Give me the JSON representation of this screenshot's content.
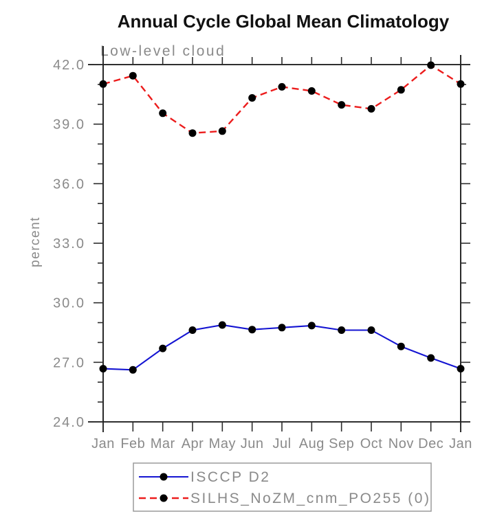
{
  "title": "Annual Cycle Global Mean Climatology",
  "subtitle": "Low-level cloud",
  "y_axis_label": "percent",
  "chart_data": {
    "type": "line",
    "title": "Annual Cycle Global Mean Climatology",
    "subtitle": "Low-level cloud",
    "ylabel": "percent",
    "xlabel": "",
    "categories": [
      "Jan",
      "Feb",
      "Mar",
      "Apr",
      "May",
      "Jun",
      "Jul",
      "Aug",
      "Sep",
      "Oct",
      "Nov",
      "Dec",
      "Jan"
    ],
    "ylim": [
      24.0,
      42.0
    ],
    "ytick_values": [
      24.0,
      27.0,
      30.0,
      33.0,
      36.0,
      39.0,
      42.0
    ],
    "ytick_labels": [
      "24.0",
      "27.0",
      "30.0",
      "33.0",
      "36.0",
      "39.0",
      "42.0"
    ],
    "yminor_interval": 1.0,
    "grid": false,
    "legend_position": "bottom-outside",
    "series": [
      {
        "name": "ISCCP D2",
        "line_color": "#1414d2",
        "line_style": "solid",
        "marker": "filled-circle",
        "marker_color": "#000000",
        "values": [
          26.68,
          26.62,
          27.7,
          28.62,
          28.88,
          28.65,
          28.75,
          28.85,
          28.62,
          28.62,
          27.8,
          27.22,
          26.68
        ]
      },
      {
        "name": "SILHS_NoZM_cnm_PO255 (0)",
        "line_color": "#ec1c1c",
        "line_style": "dashed",
        "marker": "filled-circle",
        "marker_color": "#000000",
        "values": [
          41.02,
          41.44,
          39.55,
          38.55,
          38.65,
          40.32,
          40.88,
          40.67,
          39.97,
          39.77,
          40.73,
          41.97,
          41.02
        ]
      }
    ]
  },
  "colors": {
    "axis": "#111111",
    "label_gray": "#8a8a8a",
    "title_black": "#111111",
    "legend_border": "#9a9a9a",
    "background": "#ffffff"
  }
}
